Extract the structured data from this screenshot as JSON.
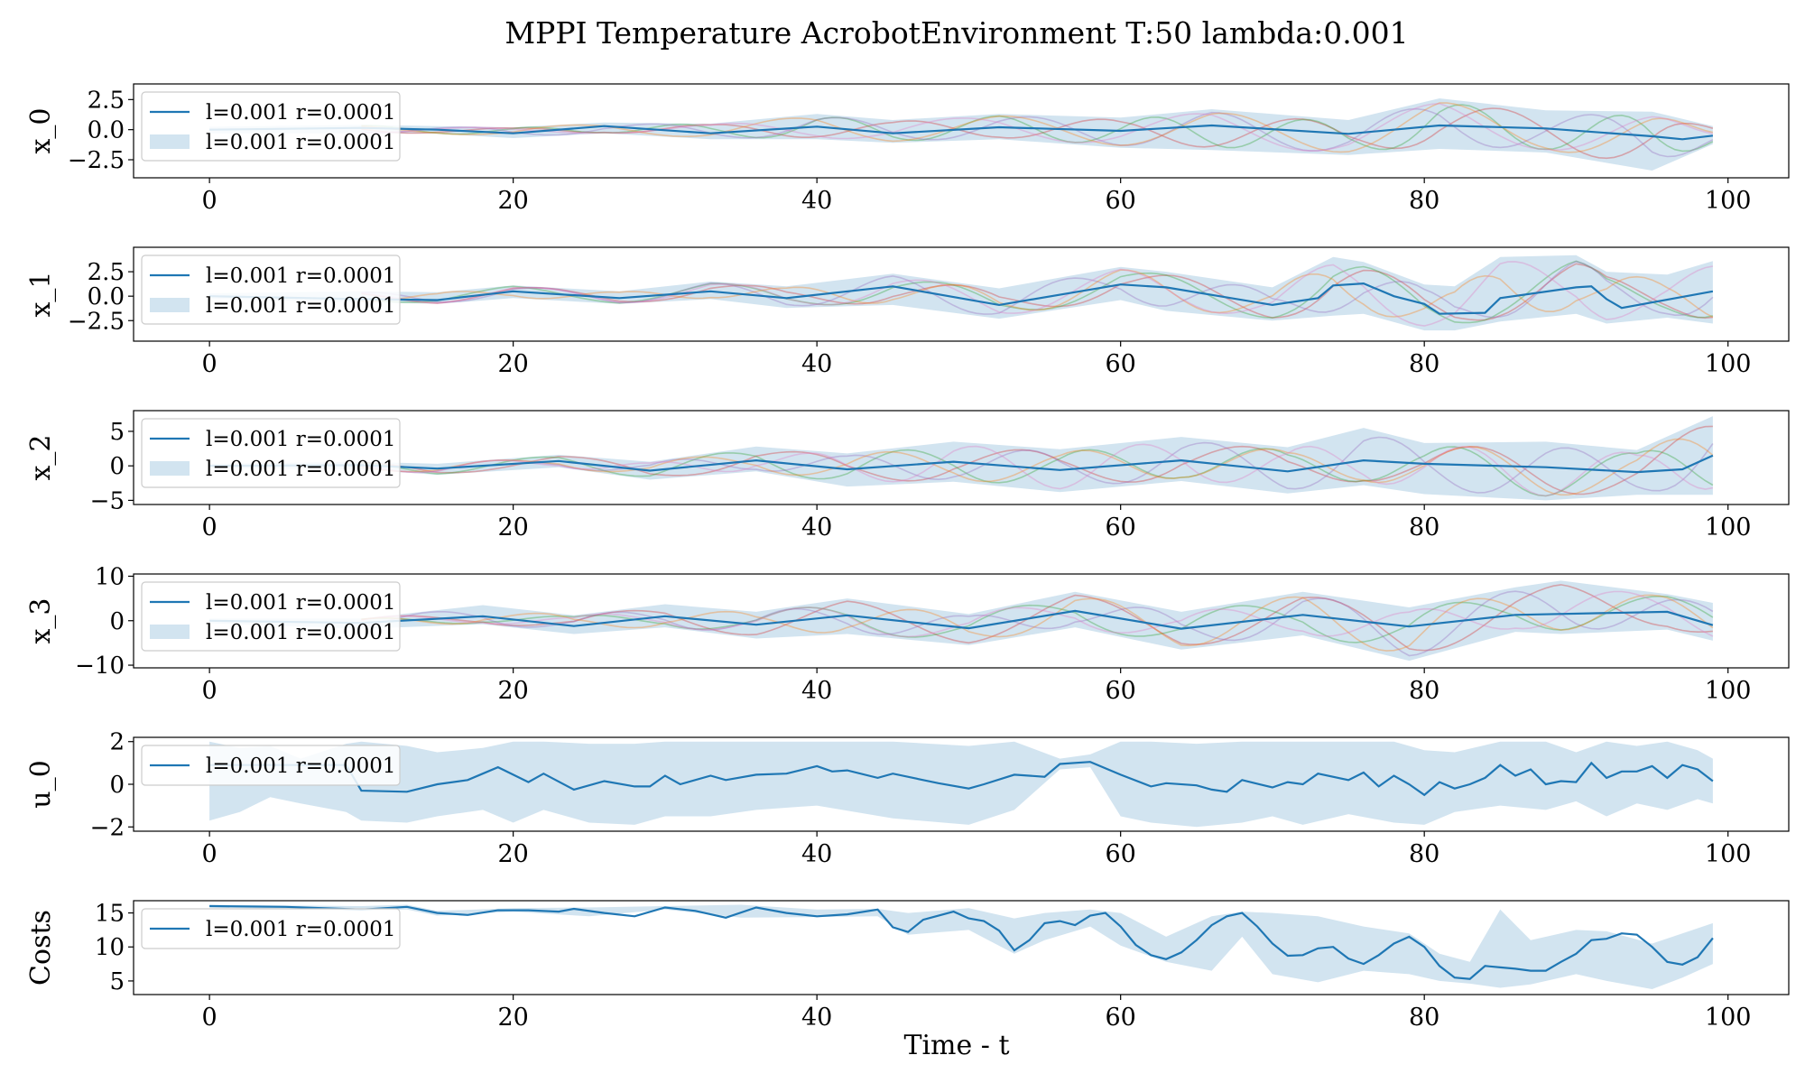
{
  "figure": {
    "title": "MPPI Temperature AcrobotEnvironment T:50 lambda:0.001",
    "xlabel": "Time - t"
  },
  "colors": {
    "mean_line": "#1f77b4",
    "band_fill": "#1f77b4",
    "band_alpha": 0.2,
    "sample_colors": [
      "#d62728",
      "#2ca02c",
      "#9467bd",
      "#ff7f0e",
      "#e377c2"
    ]
  },
  "chart_data": [
    {
      "type": "line",
      "id": "x0",
      "ylabel": "x_0",
      "xlim": [
        -5,
        104
      ],
      "ylim": [
        -4,
        3.8
      ],
      "yticks": [
        -2.5,
        0.0,
        2.5
      ],
      "ytick_labels": [
        "−2.5",
        "0.0",
        "2.5"
      ],
      "xticks": [
        0,
        20,
        40,
        60,
        80,
        100
      ],
      "xtick_labels": [
        "0",
        "20",
        "40",
        "60",
        "80",
        "100"
      ],
      "legend": {
        "placement": "upper-left",
        "line_label": "l=0.001 r=0.0001",
        "band_label": "l=0.001 r=0.0001"
      },
      "mean": {
        "x": [
          0,
          10,
          15,
          20,
          26,
          33,
          40,
          45,
          52,
          60,
          66,
          75,
          81,
          88,
          95,
          97,
          99
        ],
        "y": [
          0,
          0.15,
          0.0,
          -0.3,
          0.3,
          -0.3,
          0.25,
          -0.3,
          0.2,
          -0.1,
          0.35,
          -0.35,
          0.35,
          0.1,
          -0.55,
          -0.8,
          -0.5
        ]
      },
      "band": {
        "x": [
          0,
          10,
          15,
          20,
          26,
          33,
          40,
          45,
          52,
          60,
          66,
          75,
          81,
          88,
          95,
          99
        ],
        "upper": [
          0.25,
          0.4,
          0.3,
          0.2,
          0.6,
          0.5,
          1.3,
          0.8,
          1.3,
          1.0,
          1.7,
          0.8,
          2.6,
          1.6,
          1.5,
          0.3
        ],
        "lower": [
          -0.3,
          -0.3,
          -0.35,
          -0.7,
          -0.3,
          -0.8,
          -0.8,
          -1.1,
          -0.8,
          -1.5,
          -1.7,
          -2.1,
          -1.6,
          -1.9,
          -3.4,
          -1.2
        ]
      }
    },
    {
      "type": "line",
      "id": "x1",
      "ylabel": "x_1",
      "xlim": [
        -5,
        104
      ],
      "ylim": [
        -4.6,
        5.0
      ],
      "yticks": [
        -2.5,
        0.0,
        2.5
      ],
      "ytick_labels": [
        "−2.5",
        "0.0",
        "2.5"
      ],
      "xticks": [
        0,
        20,
        40,
        60,
        80,
        100
      ],
      "xtick_labels": [
        "0",
        "20",
        "40",
        "60",
        "80",
        "100"
      ],
      "legend": {
        "placement": "upper-left",
        "line_label": "l=0.001 r=0.0001",
        "band_label": "l=0.001 r=0.0001"
      },
      "mean": {
        "x": [
          0,
          10,
          15,
          20,
          27,
          33,
          38,
          45,
          52,
          60,
          63,
          70,
          73,
          74,
          76,
          78,
          80,
          81,
          84,
          85,
          90,
          91,
          92,
          93,
          99
        ],
        "y": [
          0,
          -0.3,
          -0.4,
          0.5,
          -0.2,
          0.5,
          -0.2,
          1.0,
          -0.9,
          1.2,
          0.9,
          -0.9,
          -0.2,
          1.1,
          1.3,
          0.0,
          -0.8,
          -1.8,
          -1.7,
          -0.2,
          0.9,
          1.0,
          -0.3,
          -1.2,
          0.5
        ]
      },
      "band": {
        "x": [
          0,
          10,
          15,
          20,
          27,
          33,
          38,
          45,
          52,
          60,
          63,
          70,
          74,
          76,
          80,
          82,
          85,
          90,
          92,
          96,
          99
        ],
        "upper": [
          0.3,
          0.5,
          0.4,
          1.1,
          0.5,
          1.5,
          1.0,
          2.3,
          0.8,
          3.0,
          2.5,
          0.9,
          4.0,
          3.5,
          1.2,
          1.0,
          4.0,
          4.2,
          2.5,
          2.2,
          3.6
        ],
        "lower": [
          -0.3,
          -0.6,
          -0.8,
          -0.2,
          -0.8,
          -0.3,
          -1.2,
          -0.9,
          -2.3,
          -0.4,
          -1.5,
          -2.5,
          -2.0,
          -1.8,
          -3.5,
          -3.5,
          -2.6,
          -1.8,
          -2.8,
          -2.2,
          -2.8
        ]
      }
    },
    {
      "type": "line",
      "id": "x2",
      "ylabel": "x_2",
      "xlim": [
        -5,
        104
      ],
      "ylim": [
        -5.6,
        8.0
      ],
      "yticks": [
        -5,
        0,
        5
      ],
      "ytick_labels": [
        "−5",
        "0",
        "5"
      ],
      "xticks": [
        0,
        20,
        40,
        60,
        80,
        100
      ],
      "xtick_labels": [
        "0",
        "20",
        "40",
        "60",
        "80",
        "100"
      ],
      "legend": {
        "placement": "upper-left",
        "line_label": "l=0.001 r=0.0001",
        "band_label": "l=0.001 r=0.0001"
      },
      "mean": {
        "x": [
          0,
          10,
          15,
          23,
          29,
          36,
          42,
          49,
          56,
          64,
          71,
          76,
          80,
          88,
          94,
          97,
          99
        ],
        "y": [
          0,
          0.1,
          -0.4,
          0.7,
          -0.7,
          0.8,
          -0.5,
          0.6,
          -0.6,
          0.8,
          -0.8,
          0.8,
          0.3,
          -0.2,
          -0.9,
          -0.5,
          1.5
        ]
      },
      "band": {
        "x": [
          0,
          10,
          15,
          23,
          29,
          36,
          42,
          49,
          56,
          64,
          71,
          76,
          80,
          88,
          94,
          99
        ],
        "upper": [
          0.3,
          0.6,
          0.3,
          1.6,
          0.6,
          2.8,
          1.8,
          3.5,
          2.4,
          4.2,
          2.7,
          5.5,
          3.3,
          3.5,
          2.3,
          7.2
        ],
        "lower": [
          -0.3,
          -0.5,
          -1.3,
          -0.2,
          -2.0,
          -0.8,
          -3.0,
          -2.3,
          -3.8,
          -2.2,
          -4.0,
          -2.8,
          -4.1,
          -5.0,
          -4.2,
          -4.2
        ]
      }
    },
    {
      "type": "line",
      "id": "x3",
      "ylabel": "x_3",
      "xlim": [
        -5,
        104
      ],
      "ylim": [
        -10.6,
        10.5
      ],
      "yticks": [
        -10,
        0,
        10
      ],
      "ytick_labels": [
        "−10",
        "0",
        "10"
      ],
      "xticks": [
        0,
        20,
        40,
        60,
        80,
        100
      ],
      "xtick_labels": [
        "0",
        "20",
        "40",
        "60",
        "80",
        "100"
      ],
      "legend": {
        "placement": "upper-left",
        "line_label": "l=0.001 r=0.0001",
        "band_label": "l=0.001 r=0.0001"
      },
      "mean": {
        "x": [
          0,
          10,
          18,
          24,
          30,
          36,
          42,
          50,
          57,
          64,
          72,
          79,
          86,
          96,
          99
        ],
        "y": [
          0,
          -0.5,
          1.0,
          -1.2,
          1.0,
          -0.9,
          1.2,
          -1.7,
          2.2,
          -1.8,
          1.3,
          -1.3,
          1.3,
          2.0,
          -1.0
        ]
      },
      "band": {
        "x": [
          0,
          10,
          18,
          24,
          30,
          36,
          42,
          50,
          57,
          64,
          72,
          79,
          86,
          89,
          96,
          99
        ],
        "upper": [
          0.5,
          0.5,
          3.5,
          1.2,
          3.7,
          2.0,
          5.0,
          1.5,
          6.5,
          2.0,
          6.5,
          3.0,
          7.5,
          9.0,
          6.0,
          4.0
        ],
        "lower": [
          -0.6,
          -1.8,
          -0.8,
          -3.0,
          -1.5,
          -4.0,
          -3.0,
          -5.5,
          -1.5,
          -6.5,
          -3.3,
          -9.0,
          -2.5,
          -3.0,
          -2.0,
          -4.5
        ]
      }
    },
    {
      "type": "line",
      "id": "u0",
      "ylabel": "u_0",
      "xlim": [
        -5,
        104
      ],
      "ylim": [
        -2.2,
        2.2
      ],
      "yticks": [
        -2,
        0,
        2
      ],
      "ytick_labels": [
        "−2",
        "0",
        "2"
      ],
      "xticks": [
        0,
        20,
        40,
        60,
        80,
        100
      ],
      "xtick_labels": [
        "0",
        "20",
        "40",
        "60",
        "80",
        "100"
      ],
      "legend": {
        "placement": "upper-left",
        "line_label": "l=0.001 r=0.0001"
      },
      "mean": {
        "x": [
          0,
          9,
          10,
          13,
          15,
          17,
          18,
          19,
          21,
          22,
          24,
          26,
          28,
          29,
          30,
          31,
          33,
          34,
          36,
          38,
          40,
          41,
          42,
          44,
          45,
          47,
          48,
          50,
          51,
          53,
          55,
          56,
          58,
          60,
          62,
          63,
          65,
          66,
          67,
          68,
          70,
          71,
          72,
          73,
          75,
          76,
          77,
          78,
          79,
          80,
          81,
          82,
          83,
          84,
          85,
          86,
          87,
          88,
          89,
          90,
          91,
          92,
          93,
          94,
          95,
          96,
          97,
          98,
          99
        ],
        "y": [
          0.9,
          0.9,
          -0.3,
          -0.35,
          0.0,
          0.2,
          0.5,
          0.8,
          0.1,
          0.5,
          -0.25,
          0.15,
          -0.1,
          -0.1,
          0.4,
          0.0,
          0.4,
          0.2,
          0.45,
          0.5,
          0.85,
          0.6,
          0.65,
          0.3,
          0.5,
          0.2,
          0.05,
          -0.2,
          0.0,
          0.45,
          0.35,
          0.95,
          1.05,
          0.45,
          -0.1,
          0.05,
          -0.05,
          -0.25,
          -0.35,
          0.2,
          -0.15,
          0.1,
          0.0,
          0.5,
          0.2,
          0.55,
          -0.1,
          0.4,
          0.0,
          -0.5,
          0.1,
          -0.2,
          0.0,
          0.3,
          0.9,
          0.4,
          0.7,
          0.0,
          0.15,
          0.1,
          1.0,
          0.3,
          0.6,
          0.6,
          0.85,
          0.3,
          0.9,
          0.7,
          0.15
        ]
      },
      "band": {
        "x": [
          0,
          2,
          4,
          6,
          9,
          10,
          13,
          15,
          18,
          20,
          22,
          25,
          28,
          30,
          33,
          36,
          40,
          45,
          50,
          53,
          56,
          58,
          60,
          62,
          65,
          68,
          70,
          72,
          75,
          78,
          80,
          82,
          85,
          88,
          90,
          92,
          94,
          96,
          98,
          99
        ],
        "upper": [
          2.0,
          1.7,
          1.8,
          1.2,
          1.9,
          2.0,
          1.8,
          1.5,
          1.7,
          2.0,
          2.0,
          1.9,
          1.9,
          2.0,
          2.0,
          2.0,
          2.0,
          2.0,
          1.8,
          2.0,
          1.2,
          1.4,
          2.0,
          2.0,
          1.9,
          2.0,
          2.0,
          2.0,
          2.0,
          2.0,
          1.6,
          1.5,
          2.0,
          2.0,
          1.5,
          2.0,
          1.8,
          2.0,
          1.6,
          1.2
        ],
        "lower": [
          -1.7,
          -1.3,
          -0.6,
          -0.9,
          -1.3,
          -1.7,
          -1.8,
          -1.5,
          -1.2,
          -1.8,
          -1.2,
          -1.8,
          -1.9,
          -1.5,
          -1.5,
          -1.2,
          -1.0,
          -1.6,
          -1.9,
          -1.2,
          0.7,
          0.8,
          -1.5,
          -1.8,
          -2.0,
          -1.8,
          -1.5,
          -1.9,
          -1.4,
          -1.8,
          -1.9,
          -1.3,
          -1.0,
          -1.2,
          -0.8,
          -1.5,
          -0.9,
          -1.2,
          -0.7,
          -0.9
        ]
      }
    },
    {
      "type": "line",
      "id": "costs",
      "ylabel": "Costs",
      "xlim": [
        -5,
        104
      ],
      "ylim": [
        3.0,
        16.8
      ],
      "yticks": [
        5,
        10,
        15
      ],
      "ytick_labels": [
        "5",
        "10",
        "15"
      ],
      "xticks": [
        0,
        20,
        40,
        60,
        80,
        100
      ],
      "xtick_labels": [
        "0",
        "20",
        "40",
        "60",
        "80",
        "100"
      ],
      "legend": {
        "placement": "upper-left",
        "line_label": "l=0.001 r=0.0001"
      },
      "mean": {
        "x": [
          0,
          5,
          10,
          13,
          15,
          17,
          19,
          21,
          23,
          24,
          26,
          28,
          30,
          32,
          34,
          36,
          38,
          40,
          42,
          44,
          45,
          46,
          47,
          49,
          50,
          51,
          52,
          53,
          54,
          55,
          56,
          57,
          58,
          59,
          60,
          61,
          62,
          63,
          64,
          65,
          66,
          67,
          68,
          69,
          70,
          71,
          72,
          73,
          74,
          75,
          76,
          77,
          78,
          79,
          80,
          81,
          82,
          83,
          84,
          85,
          86,
          87,
          88,
          89,
          90,
          91,
          92,
          93,
          94,
          95,
          96,
          97,
          98,
          99
        ],
        "y": [
          16.0,
          15.9,
          15.5,
          15.9,
          15.0,
          14.7,
          15.4,
          15.4,
          15.2,
          15.6,
          15.0,
          14.5,
          15.8,
          15.3,
          14.3,
          15.8,
          15.0,
          14.5,
          14.8,
          15.5,
          12.9,
          12.2,
          14.0,
          15.2,
          14.2,
          13.8,
          12.4,
          9.5,
          11.0,
          13.5,
          13.8,
          13.2,
          14.6,
          15.0,
          13.0,
          10.3,
          8.8,
          8.2,
          9.2,
          11.0,
          13.2,
          14.5,
          15.0,
          13.0,
          10.5,
          8.7,
          8.8,
          9.8,
          10.0,
          8.3,
          7.5,
          8.8,
          10.5,
          11.5,
          10.0,
          7.2,
          5.5,
          5.3,
          7.2,
          7.0,
          6.8,
          6.5,
          6.5,
          7.8,
          9.0,
          11.0,
          11.2,
          12.0,
          11.8,
          10.0,
          7.8,
          7.4,
          8.5,
          11.3
        ]
      },
      "band": {
        "x": [
          0,
          10,
          13,
          15,
          20,
          25,
          30,
          35,
          40,
          44,
          46,
          50,
          53,
          55,
          58,
          60,
          63,
          66,
          68,
          70,
          73,
          76,
          79,
          81,
          83,
          85,
          87,
          90,
          92,
          95,
          97,
          99
        ],
        "upper": [
          16.2,
          16.0,
          16.2,
          15.3,
          15.7,
          15.8,
          16.0,
          16.2,
          15.5,
          15.6,
          15.0,
          15.7,
          14.2,
          15.0,
          15.5,
          15.0,
          11.5,
          14.5,
          15.2,
          15.0,
          14.5,
          13.0,
          12.0,
          9.0,
          7.8,
          15.5,
          11.0,
          12.5,
          12.3,
          10.5,
          12.0,
          13.5
        ],
        "lower": [
          15.8,
          15.4,
          15.5,
          14.6,
          15.2,
          14.5,
          15.5,
          14.3,
          14.4,
          14.5,
          11.8,
          12.5,
          9.0,
          11.0,
          13.0,
          10.2,
          7.8,
          6.5,
          11.5,
          6.0,
          4.8,
          6.5,
          6.0,
          5.0,
          4.6,
          4.0,
          4.5,
          6.0,
          5.0,
          3.8,
          5.5,
          7.5
        ]
      },
      "x_axis_label": true
    }
  ]
}
